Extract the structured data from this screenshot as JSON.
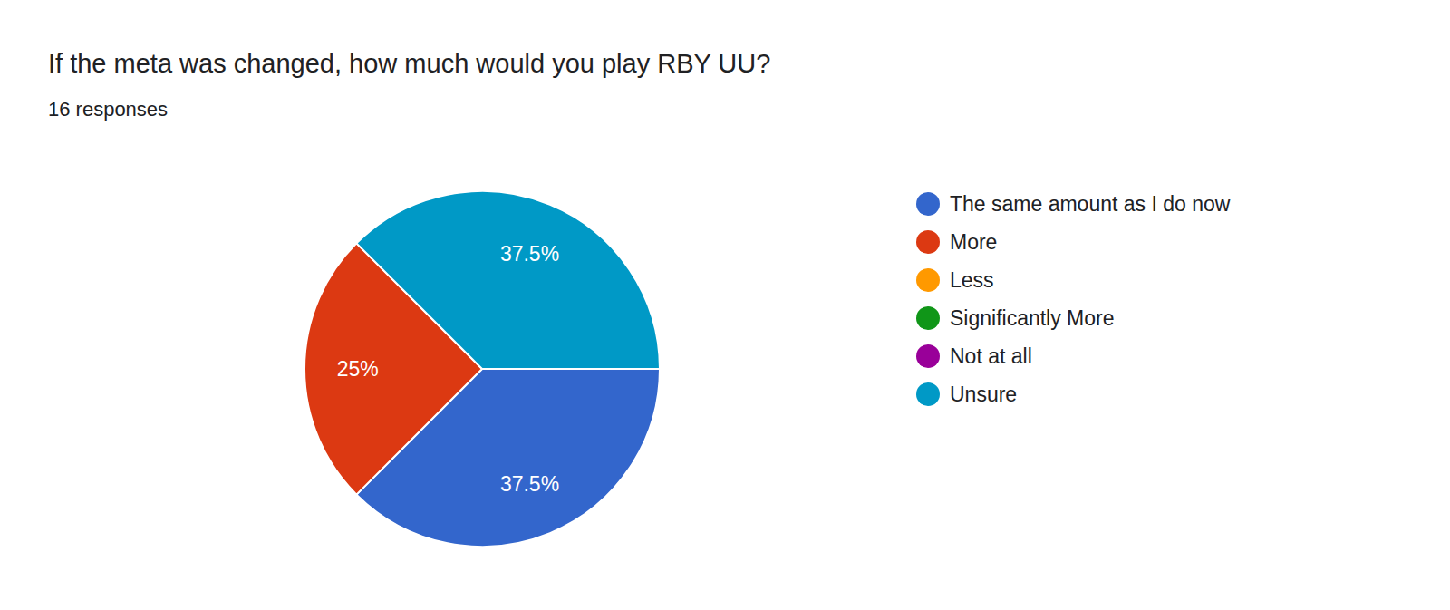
{
  "chart_data": {
    "type": "pie",
    "title": "If the meta was changed, how much would you play RBY UU?",
    "subtitle": "16 responses",
    "categories": [
      "The same amount as I do now",
      "More",
      "Less",
      "Significantly More",
      "Not at all",
      "Unsure"
    ],
    "values": [
      37.5,
      25,
      0,
      0,
      0,
      37.5
    ],
    "value_labels": [
      "37.5%",
      "25%",
      null,
      null,
      null,
      "37.5%"
    ],
    "colors": [
      "#3366cc",
      "#dc3912",
      "#ff9900",
      "#109618",
      "#990099",
      "#0099c6"
    ],
    "data_labels": true,
    "legend": "right"
  }
}
